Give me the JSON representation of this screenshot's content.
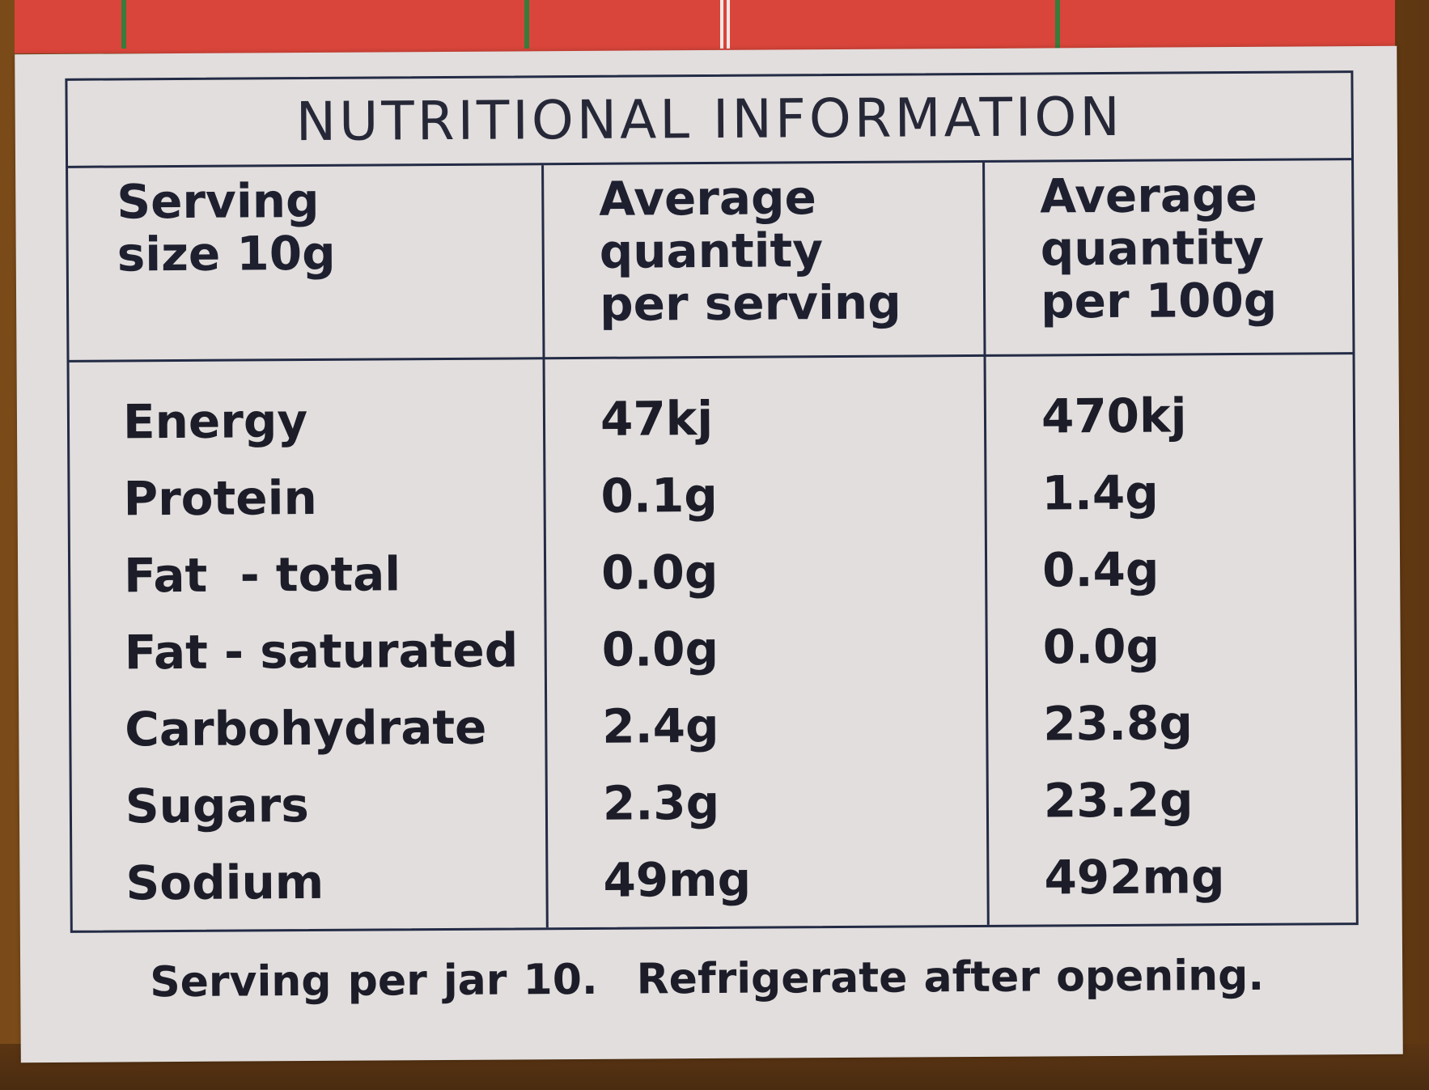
{
  "table": {
    "title": "NUTRITIONAL INFORMATION",
    "header": {
      "serving": [
        "Serving",
        "size 10g"
      ],
      "per_serving": [
        "Average",
        "quantity",
        "per serving"
      ],
      "per_100g": [
        "Average",
        "quantity",
        "per 100g"
      ]
    },
    "rows": [
      {
        "nutrient": "Energy",
        "per_serving": "47kj",
        "per_100g": "470kj"
      },
      {
        "nutrient": "Protein",
        "per_serving": "0.1g",
        "per_100g": "1.4g"
      },
      {
        "nutrient": "Fat  - total",
        "per_serving": "0.0g",
        "per_100g": "0.4g"
      },
      {
        "nutrient": "Fat - saturated",
        "per_serving": "0.0g",
        "per_100g": "0.0g"
      },
      {
        "nutrient": "Carbohydrate",
        "per_serving": "2.4g",
        "per_100g": "23.8g"
      },
      {
        "nutrient": "Sugars",
        "per_serving": "2.3g",
        "per_100g": "23.2g"
      },
      {
        "nutrient": "Sodium",
        "per_serving": "49mg",
        "per_100g": "492mg"
      }
    ]
  },
  "footer": {
    "servings": "Serving per jar 10.",
    "storage": "Refrigerate after opening."
  },
  "colors": {
    "label_background": "#e2dedd",
    "ink": "#232b45",
    "red_band": "#d9453a",
    "jar": "#7a4a18"
  }
}
